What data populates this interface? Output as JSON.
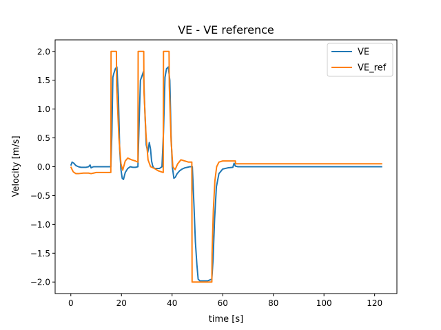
{
  "chart_data": {
    "type": "line",
    "title": "VE - VE reference",
    "xlabel": "time [s]",
    "ylabel": "Velocity [m/s]",
    "xlim": [
      -6.2,
      128.8
    ],
    "ylim": [
      -2.2,
      2.2
    ],
    "xticks": [
      0,
      20,
      40,
      60,
      80,
      100,
      120
    ],
    "yticks": [
      2.0,
      1.5,
      1.0,
      0.5,
      0.0,
      -0.5,
      -1.0,
      -1.5,
      -2.0
    ],
    "xtick_labels": [
      "0",
      "20",
      "40",
      "60",
      "80",
      "100",
      "120"
    ],
    "ytick_labels": [
      "2.0",
      "1.5",
      "1.0",
      "0.5",
      "0.0",
      "−0.5",
      "−1.0",
      "−1.5",
      "−2.0"
    ],
    "grid": false,
    "legend_position": "top-right",
    "series": [
      {
        "name": "VE",
        "color": "#1f77b4",
        "x": [
          0,
          0.5,
          1.2,
          2,
          3,
          4,
          5,
          6,
          7,
          7.6,
          8,
          8.4,
          9,
          10,
          12,
          14,
          15.8,
          16.2,
          16.6,
          17,
          17.6,
          18.2,
          18.8,
          19.3,
          19.8,
          20.3,
          20.8,
          21.5,
          22.5,
          23.5,
          24.5,
          25.5,
          26.5,
          27,
          27.5,
          28,
          28.7,
          29.3,
          29.8,
          30.4,
          31,
          31.5,
          31.9,
          32.3,
          32.7,
          33.3,
          34,
          35,
          36,
          36.6,
          37.2,
          37.8,
          38.5,
          39.1,
          39.6,
          40.1,
          40.7,
          41.3,
          42,
          43,
          44,
          45,
          46,
          47,
          48,
          48.6,
          49.2,
          49.8,
          50.3,
          51,
          52,
          54,
          55.7,
          56.2,
          56.8,
          57.5,
          58.5,
          60,
          62,
          64,
          64.5,
          65,
          66,
          70,
          80,
          90,
          100,
          110,
          123
        ],
        "y": [
          0.02,
          0.08,
          0.06,
          0.02,
          0.0,
          -0.01,
          -0.01,
          -0.01,
          0.0,
          0.03,
          -0.02,
          -0.01,
          0.0,
          0.0,
          0.0,
          0.0,
          0.0,
          0.55,
          1.55,
          1.62,
          1.7,
          1.73,
          1.2,
          0.3,
          -0.05,
          -0.2,
          -0.22,
          -0.1,
          -0.03,
          0.0,
          -0.01,
          -0.01,
          0.0,
          0.8,
          1.5,
          1.56,
          1.65,
          0.9,
          0.38,
          0.25,
          0.42,
          0.3,
          0.1,
          0.02,
          -0.02,
          -0.03,
          -0.03,
          -0.03,
          0.0,
          0.6,
          1.55,
          1.7,
          1.73,
          1.5,
          0.55,
          0.0,
          -0.2,
          -0.18,
          -0.12,
          -0.07,
          -0.04,
          -0.02,
          -0.01,
          0.0,
          0.0,
          -0.62,
          -1.3,
          -1.7,
          -1.95,
          -1.98,
          -1.98,
          -1.98,
          -1.95,
          -1.6,
          -0.9,
          -0.35,
          -0.12,
          -0.04,
          -0.02,
          -0.01,
          0.06,
          0.01,
          0.0,
          0.0,
          0.0,
          0.0,
          0.0,
          0.0,
          0.0
        ]
      },
      {
        "name": "VE_ref",
        "color": "#ff7f0e",
        "x": [
          0,
          0.5,
          1,
          2,
          3,
          5,
          7,
          8,
          9,
          10,
          12,
          14,
          15.8,
          15.9,
          18,
          18.1,
          19,
          19.8,
          20.5,
          21.5,
          22.5,
          24,
          25.5,
          26.5,
          26.6,
          28.8,
          28.9,
          29.7,
          30.5,
          31.5,
          33,
          34.5,
          36.5,
          36.6,
          38.8,
          38.9,
          39.6,
          40.3,
          41.2,
          42.2,
          43.5,
          45,
          46.5,
          47.8,
          47.9,
          55.7,
          55.8,
          56.3,
          56.9,
          57.6,
          58.5,
          60,
          62,
          64,
          65,
          65.1,
          123
        ],
        "y": [
          0.0,
          -0.05,
          -0.09,
          -0.12,
          -0.12,
          -0.11,
          -0.11,
          -0.12,
          -0.11,
          -0.1,
          -0.1,
          -0.1,
          -0.1,
          2.0,
          2.0,
          1.4,
          0.5,
          0.05,
          -0.06,
          0.1,
          0.15,
          0.12,
          0.1,
          0.08,
          2.0,
          2.0,
          1.3,
          0.55,
          0.12,
          0.0,
          -0.03,
          -0.07,
          -0.1,
          2.0,
          2.0,
          1.4,
          0.45,
          0.0,
          -0.05,
          0.05,
          0.12,
          0.1,
          0.08,
          0.08,
          -2.0,
          -2.0,
          -1.5,
          -0.75,
          -0.25,
          0.0,
          0.08,
          0.1,
          0.1,
          0.1,
          0.1,
          0.05,
          0.05
        ]
      }
    ]
  }
}
